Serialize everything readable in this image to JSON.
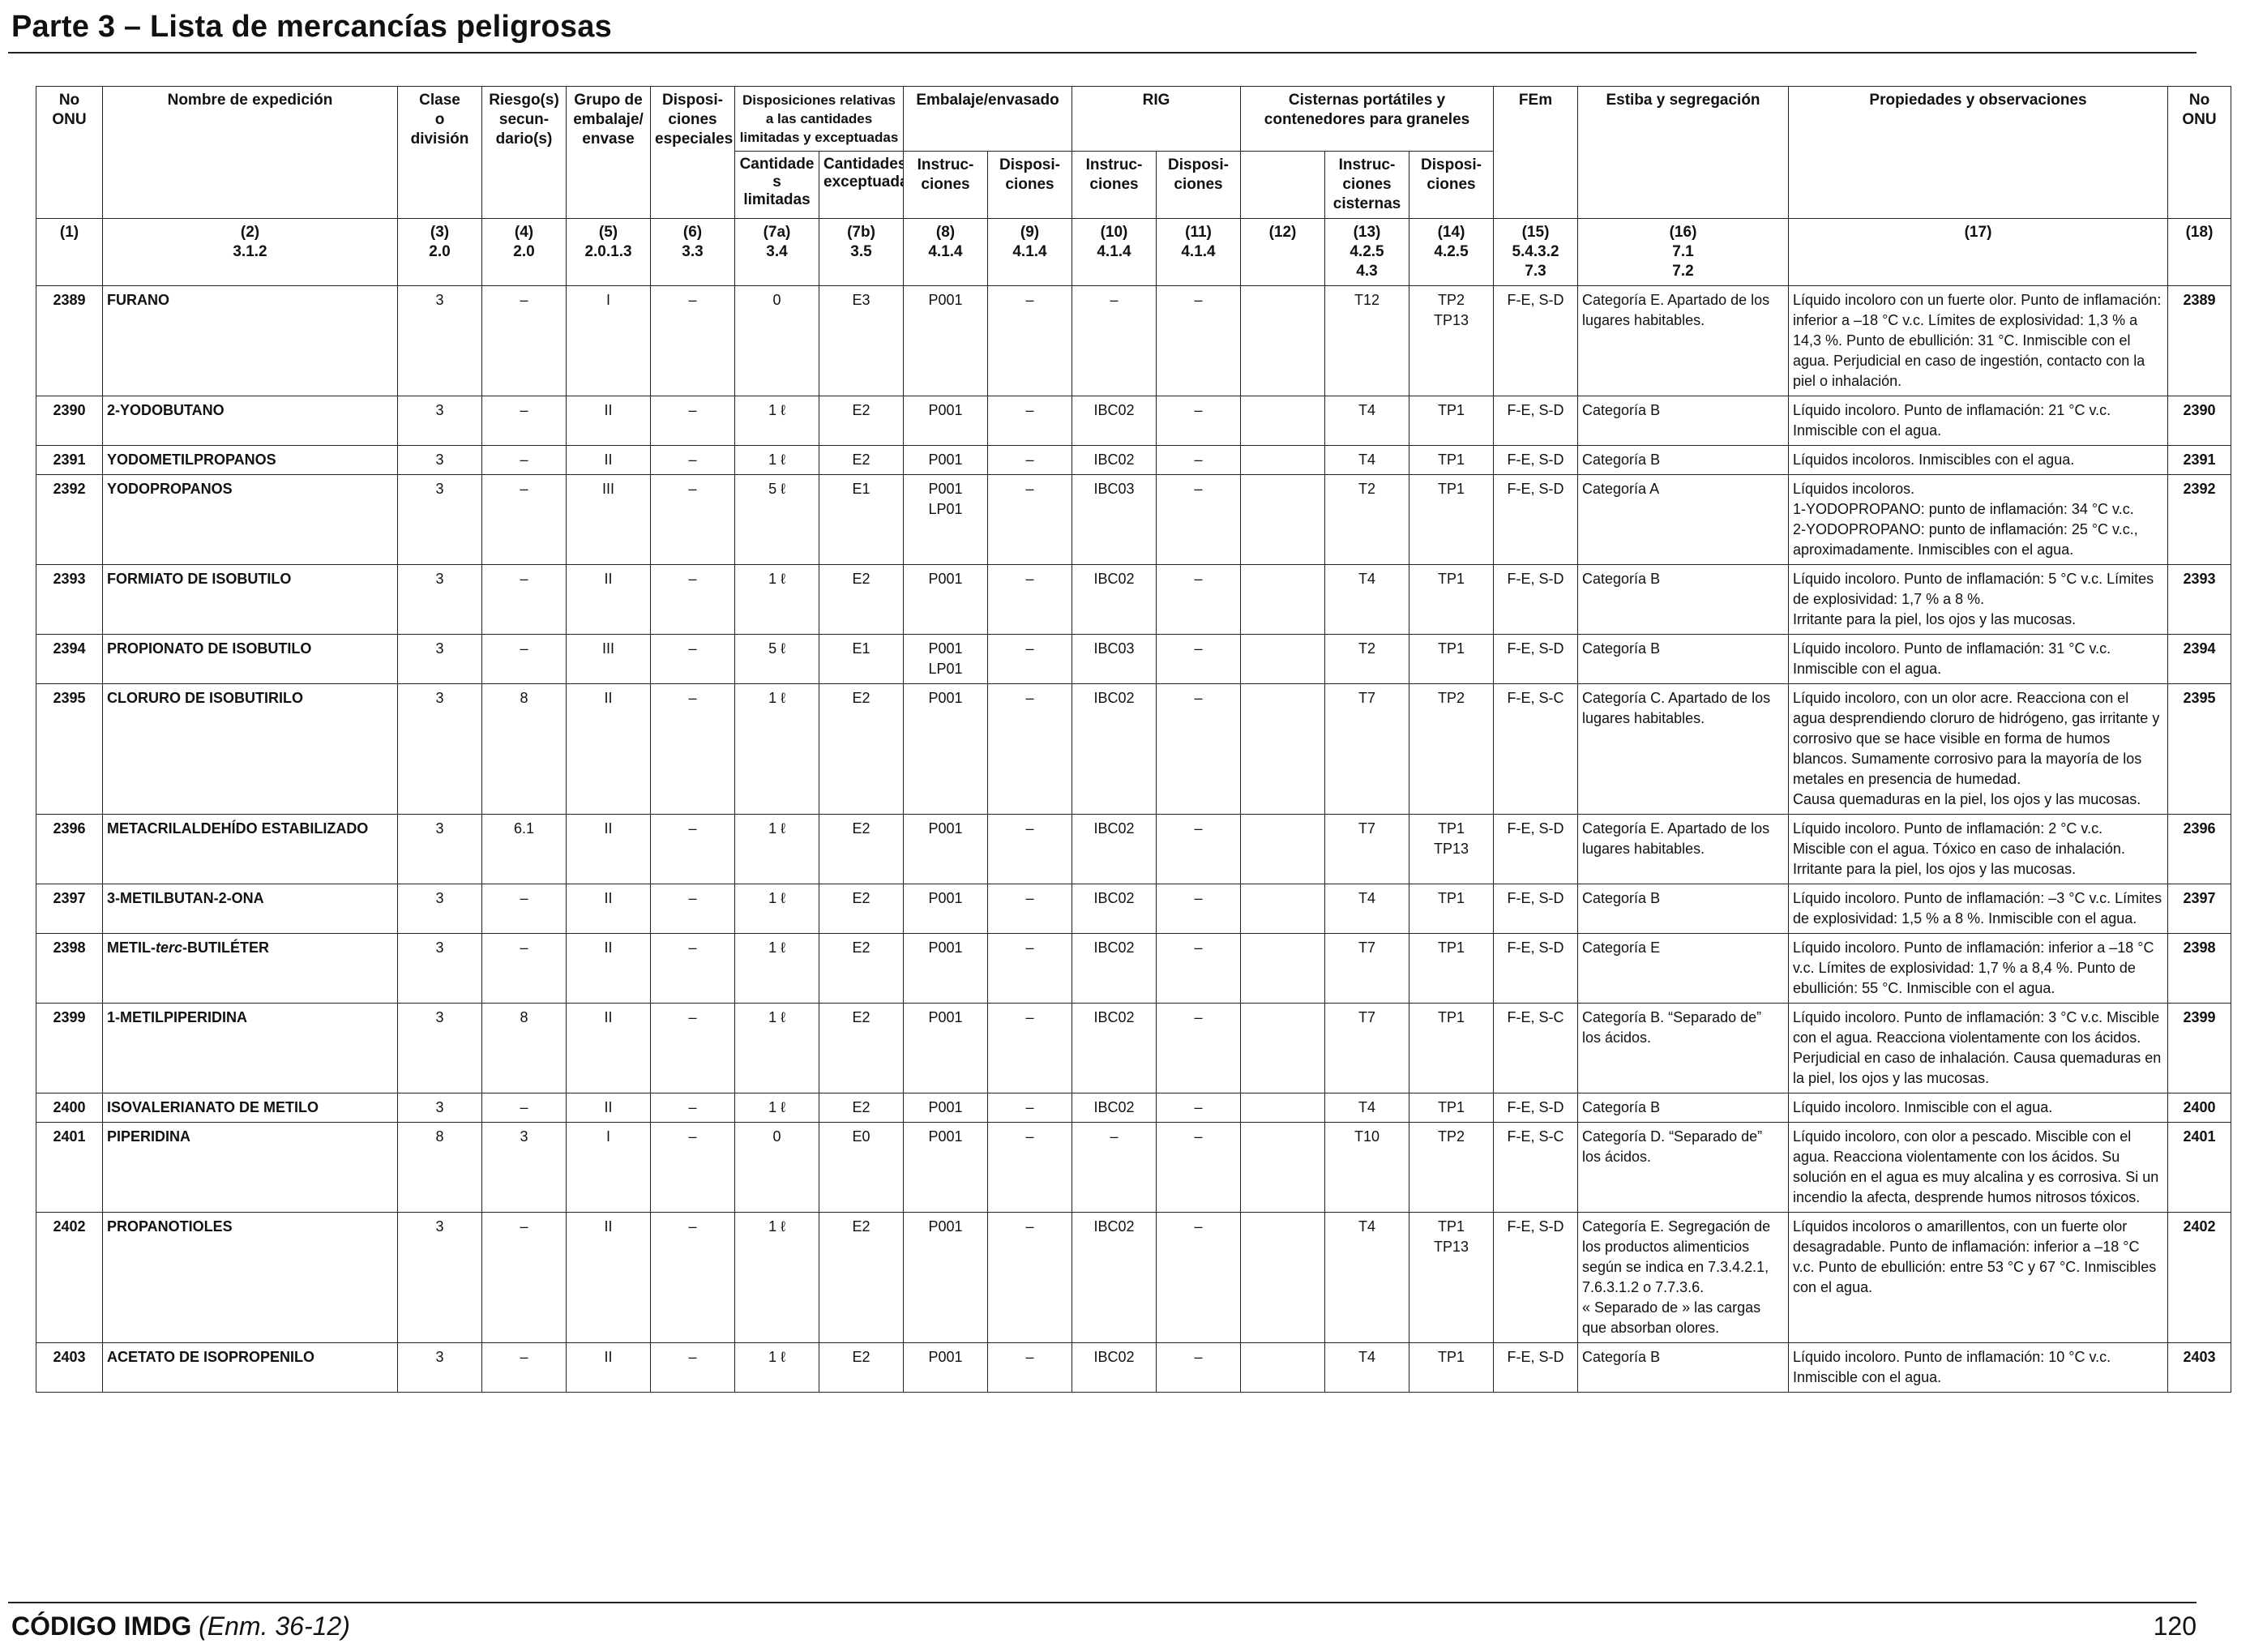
{
  "page": {
    "title": "Parte 3 – Lista de mercancías peligrosas",
    "footer_code": "CÓDIGO IMDG",
    "footer_amendment": "(Enm. 36-12)",
    "page_number": "120"
  },
  "header": {
    "col1": "No\nONU",
    "col2": "Nombre de expedición",
    "col3": "Clase\no\ndivisión",
    "col4": "Riesgo(s)\nsecun-\ndario(s)",
    "col5": "Grupo de\nembalaje/\nenvase",
    "col6": "Disposi-\nciones\nespeciales",
    "col7": "Disposiciones relativas\na las cantidades\nlimitadas y exceptuadas",
    "col8_9": "Embalaje/envasado",
    "col10_11": "RIG",
    "col12_14": "Cisternas portátiles y\ncontenedores para graneles",
    "col15": "FEm",
    "col16": "Estiba y segregación",
    "col17": "Propiedades y observaciones",
    "col18": "No\nONU",
    "sub7a": "Cantidade\ns limitadas",
    "sub7b": "Cantidades\nexceptuadas",
    "sub8": "Instruc-\nciones",
    "sub9": "Disposi-\nciones",
    "sub10": "Instruc-\nciones",
    "sub11": "Disposi-\nciones",
    "sub13": "Instruc-\nciones\ncisternas",
    "sub14": "Disposi-\nciones",
    "refs": [
      "(1)",
      "(2)\n3.1.2",
      "(3)\n2.0",
      "(4)\n2.0",
      "(5)\n2.0.1.3",
      "(6)\n3.3",
      "(7a)\n3.4",
      "(7b)\n3.5",
      "(8)\n4.1.4",
      "(9)\n4.1.4",
      "(10)\n4.1.4",
      "(11)\n4.1.4",
      "(12)",
      "(13)\n4.2.5\n4.3",
      "(14)\n4.2.5",
      "(15)\n5.4.3.2\n7.3",
      "(16)\n7.1\n7.2",
      "(17)",
      "(18)"
    ]
  },
  "rows": [
    {
      "un": "2389",
      "name": "FURANO",
      "cls": "3",
      "sub": "–",
      "pg": "I",
      "sp": "–",
      "lq": "0",
      "eq": "E3",
      "pi": "P001",
      "pp": "–",
      "ibc": "–",
      "ibcp": "–",
      "c12": "",
      "tank": "T12",
      "tankp": "TP2\nTP13",
      "ems": "F-E, S-D",
      "stow": "Categoría E. Apartado de los lugares habitables.",
      "props": "Líquido incoloro con un fuerte olor. Punto de inflamación: inferior a –18 °C v.c. Límites de explosividad: 1,3 % a 14,3 %. Punto de ebullición: 31 °C. Inmiscible con el agua. Perjudicial en caso de ingestión, contacto con la piel o inhalación.",
      "un2": "2389"
    },
    {
      "un": "2390",
      "name": "2-YODOBUTANO",
      "cls": "3",
      "sub": "–",
      "pg": "II",
      "sp": "–",
      "lq": "1 ℓ",
      "eq": "E2",
      "pi": "P001",
      "pp": "–",
      "ibc": "IBC02",
      "ibcp": "–",
      "c12": "",
      "tank": "T4",
      "tankp": "TP1",
      "ems": "F-E, S-D",
      "stow": "Categoría B",
      "props": "Líquido incoloro. Punto de inflamación: 21 °C v.c. Inmiscible con el agua.",
      "un2": "2390"
    },
    {
      "un": "2391",
      "name": "YODOMETILPROPANOS",
      "cls": "3",
      "sub": "–",
      "pg": "II",
      "sp": "–",
      "lq": "1 ℓ",
      "eq": "E2",
      "pi": "P001",
      "pp": "–",
      "ibc": "IBC02",
      "ibcp": "–",
      "c12": "",
      "tank": "T4",
      "tankp": "TP1",
      "ems": "F-E, S-D",
      "stow": "Categoría B",
      "props": "Líquidos incoloros. Inmiscibles con el agua.",
      "un2": "2391"
    },
    {
      "un": "2392",
      "name": "YODOPROPANOS",
      "cls": "3",
      "sub": "–",
      "pg": "III",
      "sp": "–",
      "lq": "5 ℓ",
      "eq": "E1",
      "pi": "P001\nLP01",
      "pp": "–",
      "ibc": "IBC03",
      "ibcp": "–",
      "c12": "",
      "tank": "T2",
      "tankp": "TP1",
      "ems": "F-E, S-D",
      "stow": "Categoría A",
      "props": "Líquidos incoloros.\n1-YODOPROPANO: punto de inflamación: 34 °C v.c.\n2-YODOPROPANO: punto de inflamación: 25 °C v.c., aproximadamente. Inmiscibles con el agua.",
      "un2": "2392"
    },
    {
      "un": "2393",
      "name": "FORMIATO DE ISOBUTILO",
      "cls": "3",
      "sub": "–",
      "pg": "II",
      "sp": "–",
      "lq": "1 ℓ",
      "eq": "E2",
      "pi": "P001",
      "pp": "–",
      "ibc": "IBC02",
      "ibcp": "–",
      "c12": "",
      "tank": "T4",
      "tankp": "TP1",
      "ems": "F-E, S-D",
      "stow": "Categoría B",
      "props": "Líquido incoloro. Punto de inflamación: 5 °C v.c. Límites de explosividad: 1,7 % a 8 %.\nIrritante para la piel, los ojos y las mucosas.",
      "un2": "2393"
    },
    {
      "un": "2394",
      "name": "PROPIONATO DE ISOBUTILO",
      "cls": "3",
      "sub": "–",
      "pg": "III",
      "sp": "–",
      "lq": "5 ℓ",
      "eq": "E1",
      "pi": "P001\nLP01",
      "pp": "–",
      "ibc": "IBC03",
      "ibcp": "–",
      "c12": "",
      "tank": "T2",
      "tankp": "TP1",
      "ems": "F-E, S-D",
      "stow": "Categoría B",
      "props": "Líquido incoloro. Punto de inflamación: 31 °C v.c. Inmiscible con el agua.",
      "un2": "2394"
    },
    {
      "un": "2395",
      "name": "CLORURO DE ISOBUTIRILO",
      "cls": "3",
      "sub": "8",
      "pg": "II",
      "sp": "–",
      "lq": "1 ℓ",
      "eq": "E2",
      "pi": "P001",
      "pp": "–",
      "ibc": "IBC02",
      "ibcp": "–",
      "c12": "",
      "tank": "T7",
      "tankp": "TP2",
      "ems": "F-E, S-C",
      "stow": "Categoría C. Apartado de los lugares habitables.",
      "props": "Líquido incoloro, con un olor acre. Reacciona con el agua desprendiendo cloruro de hidrógeno, gas irritante y corrosivo que se hace visible en forma de humos blancos. Sumamente corrosivo para la mayoría de los metales en presencia de humedad.\nCausa quemaduras en la piel, los ojos y las mucosas.",
      "un2": "2395"
    },
    {
      "un": "2396",
      "name": "METACRILALDEHÍDO ESTABILIZADO",
      "cls": "3",
      "sub": "6.1",
      "pg": "II",
      "sp": "–",
      "lq": "1 ℓ",
      "eq": "E2",
      "pi": "P001",
      "pp": "–",
      "ibc": "IBC02",
      "ibcp": "–",
      "c12": "",
      "tank": "T7",
      "tankp": "TP1\nTP13",
      "ems": "F-E, S-D",
      "stow": "Categoría E. Apartado de los lugares habitables.",
      "props": "Líquido incoloro. Punto de inflamación: 2 °C v.c.\nMiscible con el agua. Tóxico en caso de inhalación.\nIrritante para la piel, los ojos y las mucosas.",
      "un2": "2396"
    },
    {
      "un": "2397",
      "name": "3-METILBUTAN-2-ONA",
      "cls": "3",
      "sub": "–",
      "pg": "II",
      "sp": "–",
      "lq": "1 ℓ",
      "eq": "E2",
      "pi": "P001",
      "pp": "–",
      "ibc": "IBC02",
      "ibcp": "–",
      "c12": "",
      "tank": "T4",
      "tankp": "TP1",
      "ems": "F-E, S-D",
      "stow": "Categoría B",
      "props": "Líquido incoloro. Punto de inflamación: –3 °C v.c. Límites de explosividad: 1,5 % a 8 %. Inmiscible con el agua.",
      "un2": "2397"
    },
    {
      "un": "2398",
      "name_pre": "METIL-",
      "name_it": "terc",
      "name_post": "-BUTILÉTER",
      "cls": "3",
      "sub": "–",
      "pg": "II",
      "sp": "–",
      "lq": "1 ℓ",
      "eq": "E2",
      "pi": "P001",
      "pp": "–",
      "ibc": "IBC02",
      "ibcp": "–",
      "c12": "",
      "tank": "T7",
      "tankp": "TP1",
      "ems": "F-E, S-D",
      "stow": "Categoría E",
      "props": "Líquido incoloro. Punto de inflamación: inferior a –18 °C v.c. Límites de explosividad: 1,7 % a 8,4 %. Punto de ebullición: 55 °C. Inmiscible con el agua.",
      "un2": "2398"
    },
    {
      "un": "2399",
      "name": "1-METILPIPERIDINA",
      "cls": "3",
      "sub": "8",
      "pg": "II",
      "sp": "–",
      "lq": "1 ℓ",
      "eq": "E2",
      "pi": "P001",
      "pp": "–",
      "ibc": "IBC02",
      "ibcp": "–",
      "c12": "",
      "tank": "T7",
      "tankp": "TP1",
      "ems": "F-E, S-C",
      "stow": "Categoría B. “Separado de” los ácidos.",
      "props": "Líquido incoloro. Punto de inflamación: 3 °C v.c. Miscible con el agua. Reacciona violentamente con los ácidos. Perjudicial en caso de inhalación. Causa quemaduras en la piel, los ojos y las mucosas.",
      "un2": "2399"
    },
    {
      "un": "2400",
      "name": "ISOVALERIANATO DE METILO",
      "cls": "3",
      "sub": "–",
      "pg": "II",
      "sp": "–",
      "lq": "1 ℓ",
      "eq": "E2",
      "pi": "P001",
      "pp": "–",
      "ibc": "IBC02",
      "ibcp": "–",
      "c12": "",
      "tank": "T4",
      "tankp": "TP1",
      "ems": "F-E, S-D",
      "stow": "Categoría B",
      "props": "Líquido incoloro. Inmiscible con el agua.",
      "un2": "2400"
    },
    {
      "un": "2401",
      "name": "PIPERIDINA",
      "cls": "8",
      "sub": "3",
      "pg": "I",
      "sp": "–",
      "lq": "0",
      "eq": "E0",
      "pi": "P001",
      "pp": "–",
      "ibc": "–",
      "ibcp": "–",
      "c12": "",
      "tank": "T10",
      "tankp": "TP2",
      "ems": "F-E, S-C",
      "stow": "Categoría D. “Separado de” los ácidos.",
      "props": "Líquido incoloro, con olor a pescado. Miscible con el agua. Reacciona violentamente con los ácidos. Su solución en el agua es muy alcalina y es corrosiva. Si un incendio la afecta, desprende humos nitrosos tóxicos.",
      "un2": "2401"
    },
    {
      "un": "2402",
      "name": "PROPANOTIOLES",
      "cls": "3",
      "sub": "–",
      "pg": "II",
      "sp": "–",
      "lq": "1 ℓ",
      "eq": "E2",
      "pi": "P001",
      "pp": "–",
      "ibc": "IBC02",
      "ibcp": "–",
      "c12": "",
      "tank": "T4",
      "tankp": "TP1\nTP13",
      "ems": "F-E, S-D",
      "stow": "Categoría E. Segregación de los productos alimenticios según se indica en 7.3.4.2.1, 7.6.3.1.2 o 7.7.3.6.\n« Separado de » las cargas que absorban olores.",
      "props": "Líquidos incoloros o amarillentos, con un fuerte olor desagradable. Punto de inflamación: inferior a –18 °C v.c. Punto de ebullición: entre 53 °C y 67 °C. Inmiscibles con el agua.",
      "un2": "2402"
    },
    {
      "un": "2403",
      "name": "ACETATO DE ISOPROPENILO",
      "cls": "3",
      "sub": "–",
      "pg": "II",
      "sp": "–",
      "lq": "1 ℓ",
      "eq": "E2",
      "pi": "P001",
      "pp": "–",
      "ibc": "IBC02",
      "ibcp": "–",
      "c12": "",
      "tank": "T4",
      "tankp": "TP1",
      "ems": "F-E, S-D",
      "stow": "Categoría B",
      "props": "Líquido incoloro. Punto de inflamación: 10 °C v.c. Inmiscible con el agua.",
      "un2": "2403"
    }
  ]
}
